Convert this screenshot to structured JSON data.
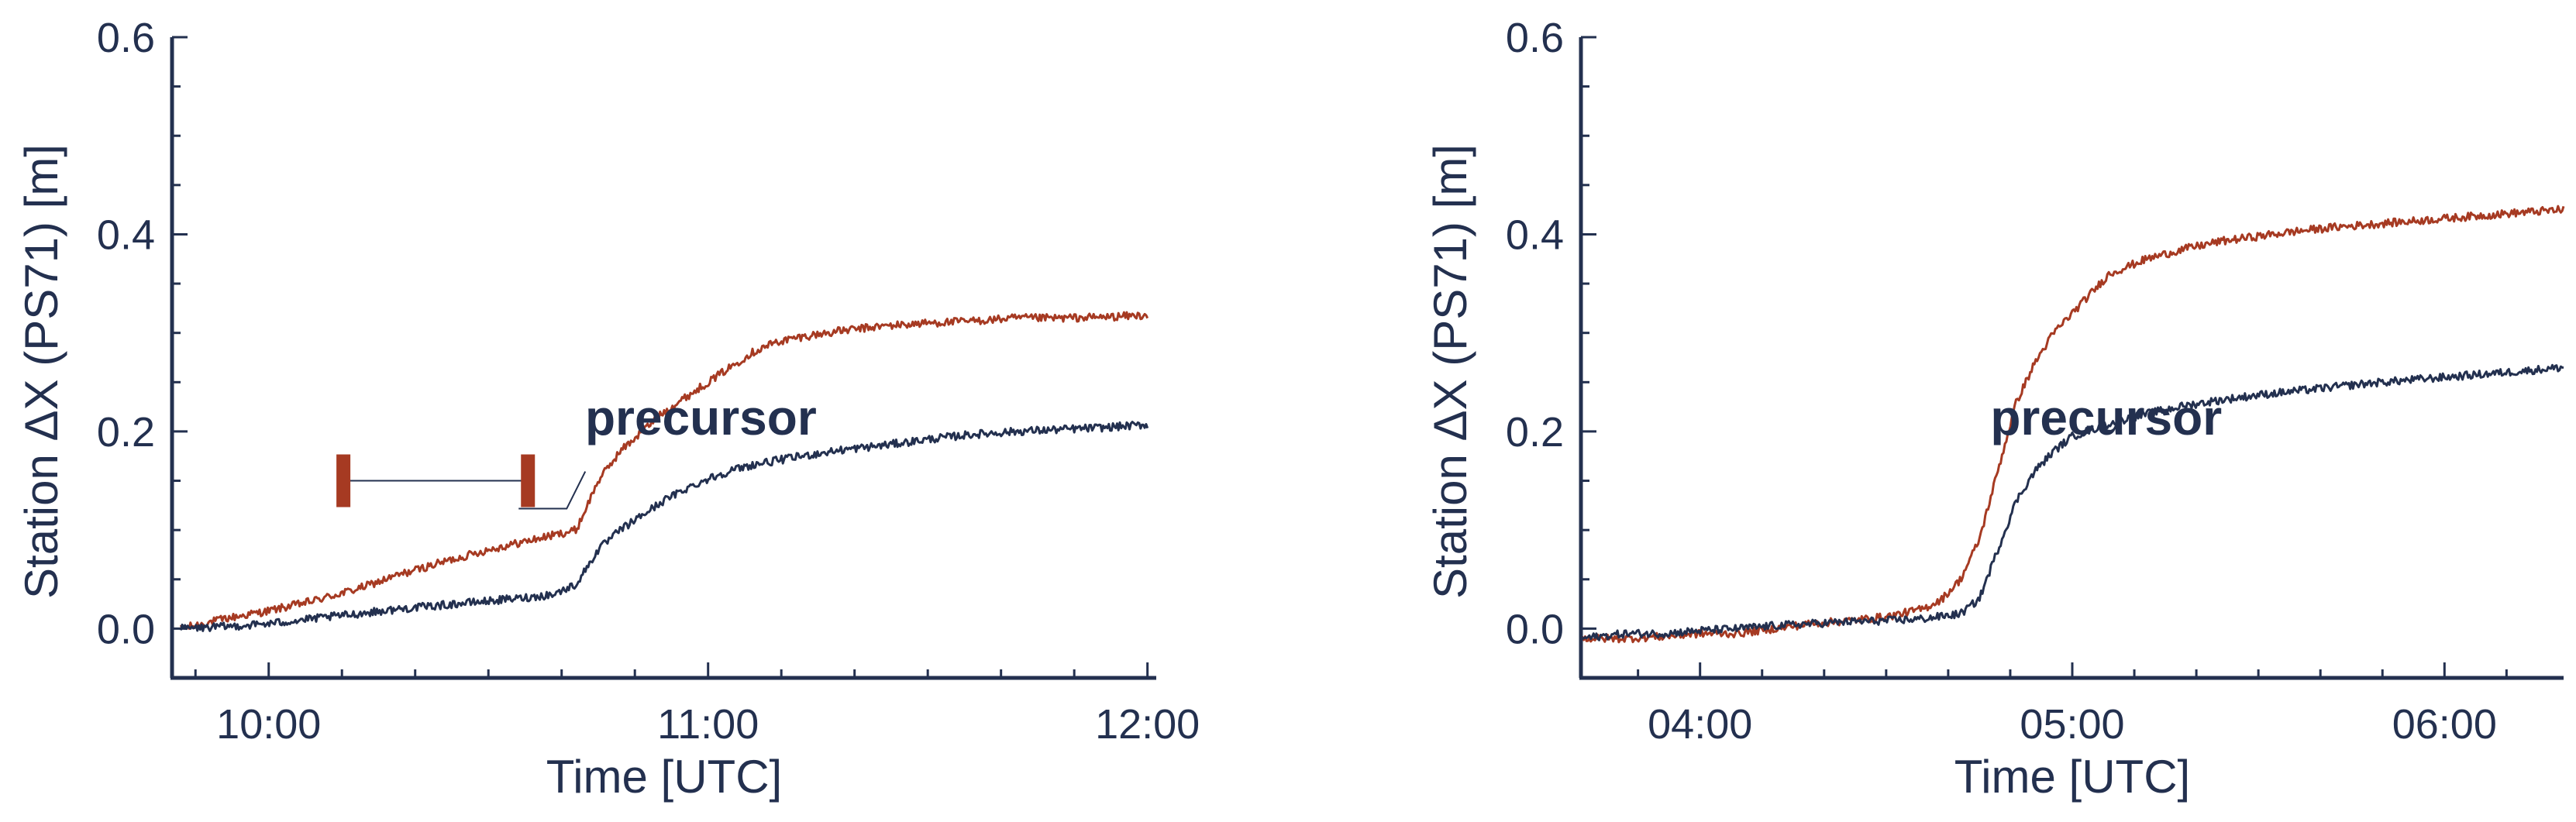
{
  "colors": {
    "axis": "#23304f",
    "red_series": "#a63a22",
    "navy_series": "#23304f",
    "background": "#ffffff"
  },
  "chart_data": [
    {
      "type": "line",
      "x_unit": "hours UTC",
      "xlim": [
        9.78,
        12.02
      ],
      "ylim": [
        -0.05,
        0.6
      ],
      "xticks": [
        10,
        11,
        12
      ],
      "xtick_labels": [
        "10:00",
        "11:00",
        "12:00"
      ],
      "yticks": [
        0.0,
        0.2,
        0.4,
        0.6
      ],
      "ytick_labels": [
        "0.0",
        "0.2",
        "0.4",
        "0.6"
      ],
      "xlabel": "Time [UTC]",
      "ylabel": "Station ΔX (PS71) [m]",
      "annotation": {
        "text": "precursor",
        "x": 10.72,
        "y": 0.2
      },
      "interval_bar": {
        "start": 10.17,
        "end": 10.59,
        "y": 0.15
      },
      "series": [
        {
          "color": "#a63a22",
          "x": [
            9.8,
            9.9,
            10.0,
            10.1,
            10.2,
            10.3,
            10.4,
            10.5,
            10.6,
            10.65,
            10.7,
            10.72,
            10.75,
            10.8,
            10.85,
            10.9,
            10.95,
            11.0,
            11.05,
            11.1,
            11.15,
            11.2,
            11.3,
            11.4,
            11.5,
            11.6,
            11.7,
            11.8,
            11.9,
            12.0
          ],
          "y": [
            0.0,
            0.01,
            0.018,
            0.028,
            0.04,
            0.055,
            0.068,
            0.08,
            0.09,
            0.095,
            0.1,
            0.12,
            0.15,
            0.18,
            0.2,
            0.22,
            0.235,
            0.25,
            0.265,
            0.28,
            0.29,
            0.295,
            0.302,
            0.307,
            0.31,
            0.312,
            0.315,
            0.315,
            0.316,
            0.318
          ]
        },
        {
          "color": "#23304f",
          "x": [
            9.8,
            9.9,
            10.0,
            10.1,
            10.2,
            10.3,
            10.4,
            10.5,
            10.6,
            10.65,
            10.7,
            10.75,
            10.8,
            10.85,
            10.9,
            10.95,
            11.0,
            11.05,
            11.1,
            11.2,
            11.3,
            11.4,
            11.5,
            11.6,
            11.7,
            11.8,
            11.9,
            12.0
          ],
          "y": [
            0.0,
            0.002,
            0.005,
            0.01,
            0.015,
            0.02,
            0.024,
            0.028,
            0.032,
            0.035,
            0.045,
            0.08,
            0.1,
            0.115,
            0.13,
            0.142,
            0.152,
            0.16,
            0.166,
            0.174,
            0.181,
            0.186,
            0.192,
            0.197,
            0.2,
            0.202,
            0.204,
            0.207
          ]
        }
      ]
    },
    {
      "type": "line",
      "x_unit": "hours UTC",
      "xlim": [
        3.68,
        6.32
      ],
      "ylim": [
        -0.05,
        0.6
      ],
      "xticks": [
        4,
        5,
        6
      ],
      "xtick_labels": [
        "04:00",
        "05:00",
        "06:00"
      ],
      "yticks": [
        0.0,
        0.2,
        0.4,
        0.6
      ],
      "ytick_labels": [
        "0.0",
        "0.2",
        "0.4",
        "0.6"
      ],
      "xlabel": "Time [UTC]",
      "ylabel": "Station ΔX (PS71) [m]",
      "annotation": {
        "text": "precursor",
        "x": 4.78,
        "y": 0.2
      },
      "series": [
        {
          "color": "#a63a22",
          "x": [
            3.68,
            3.8,
            3.9,
            4.0,
            4.1,
            4.2,
            4.3,
            4.4,
            4.5,
            4.6,
            4.65,
            4.7,
            4.75,
            4.8,
            4.85,
            4.9,
            4.95,
            5.0,
            5.05,
            5.1,
            5.2,
            5.3,
            5.4,
            5.5,
            5.6,
            5.7,
            5.8,
            5.9,
            6.0,
            6.1,
            6.2,
            6.32
          ],
          "y": [
            -0.01,
            -0.01,
            -0.008,
            -0.005,
            -0.005,
            0.0,
            0.005,
            0.008,
            0.012,
            0.02,
            0.03,
            0.05,
            0.09,
            0.16,
            0.23,
            0.27,
            0.3,
            0.32,
            0.34,
            0.36,
            0.375,
            0.385,
            0.393,
            0.398,
            0.403,
            0.407,
            0.41,
            0.413,
            0.416,
            0.419,
            0.422,
            0.425
          ]
        },
        {
          "color": "#23304f",
          "x": [
            3.68,
            3.8,
            3.9,
            4.0,
            4.1,
            4.2,
            4.3,
            4.4,
            4.5,
            4.6,
            4.7,
            4.75,
            4.8,
            4.85,
            4.9,
            4.95,
            5.0,
            5.1,
            5.2,
            5.3,
            5.4,
            5.5,
            5.6,
            5.7,
            5.8,
            5.9,
            6.0,
            6.1,
            6.2,
            6.32
          ],
          "y": [
            -0.01,
            -0.005,
            -0.005,
            -0.002,
            0.0,
            0.003,
            0.005,
            0.007,
            0.008,
            0.01,
            0.015,
            0.03,
            0.08,
            0.13,
            0.16,
            0.18,
            0.195,
            0.208,
            0.218,
            0.226,
            0.232,
            0.237,
            0.241,
            0.245,
            0.249,
            0.252,
            0.255,
            0.258,
            0.261,
            0.265
          ]
        }
      ]
    }
  ]
}
